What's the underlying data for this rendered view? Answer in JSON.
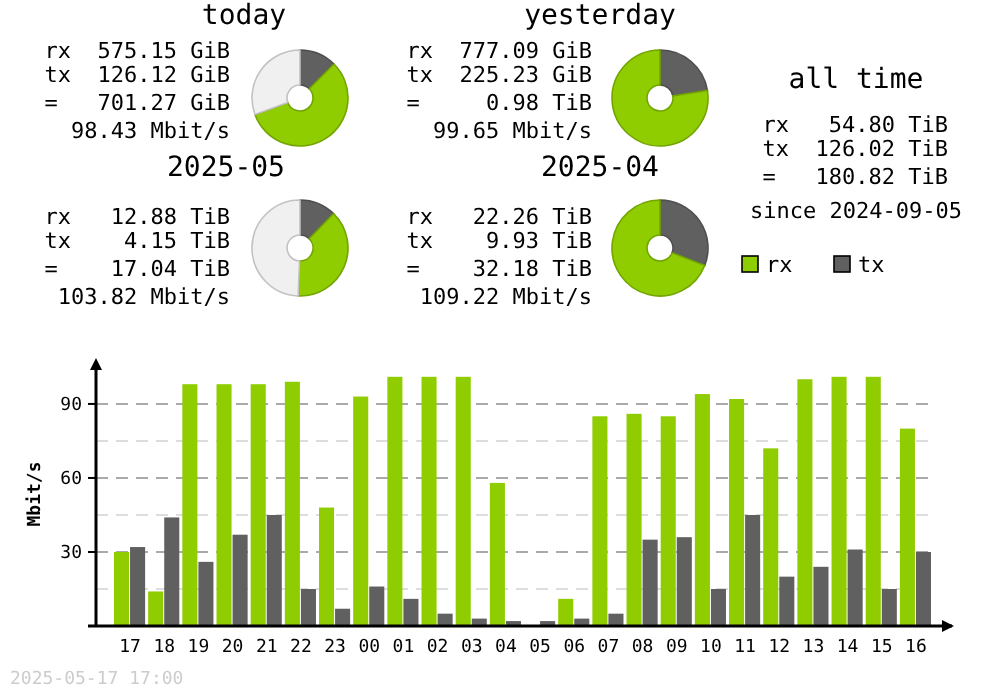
{
  "chart_data": [
    {
      "type": "donut",
      "title": "today",
      "categories": [
        null,
        null,
        null
      ],
      "values": [
        12.5,
        56.9,
        30.6
      ],
      "colors": [
        "#606060",
        "#8fcc00",
        "#f0f0f0"
      ],
      "annotations": [
        "rx  575.15 GiB",
        "tx  126.12 GiB",
        "=   701.27 GiB",
        "98.43 Mbit/s"
      ]
    },
    {
      "type": "donut",
      "title": "yesterday",
      "categories": [
        null,
        null
      ],
      "values": [
        22.5,
        77.5
      ],
      "colors": [
        "#606060",
        "#8fcc00"
      ],
      "annotations": [
        "rx  777.09 GiB",
        "tx  225.23 GiB",
        "=     0.98 TiB",
        "99.65 Mbit/s"
      ]
    },
    {
      "type": "donut",
      "title": "2025-05",
      "categories": [
        null,
        null,
        null
      ],
      "values": [
        12.3,
        38.3,
        49.4
      ],
      "colors": [
        "#606060",
        "#8fcc00",
        "#f0f0f0"
      ],
      "annotations": [
        "rx   12.88 TiB",
        "tx    4.15 TiB",
        "=    17.04 TiB",
        "103.82 Mbit/s"
      ]
    },
    {
      "type": "donut",
      "title": "2025-04",
      "categories": [
        null,
        null
      ],
      "values": [
        30.9,
        69.1
      ],
      "colors": [
        "#606060",
        "#8fcc00"
      ],
      "annotations": [
        "rx   22.26 TiB",
        "tx    9.93 TiB",
        "=    32.18 TiB",
        "109.22 Mbit/s"
      ]
    },
    {
      "type": "other",
      "title": "all time",
      "annotations": [
        "rx   54.80 TiB",
        "tx  126.02 TiB",
        "=   180.82 TiB",
        "since 2024-09-05"
      ]
    },
    {
      "type": "bar",
      "ylabel": "Mbit/s",
      "categories": [
        "17",
        "18",
        "19",
        "20",
        "21",
        "22",
        "23",
        "00",
        "01",
        "02",
        "03",
        "04",
        "05",
        "06",
        "07",
        "08",
        "09",
        "10",
        "11",
        "12",
        "13",
        "14",
        "15",
        "16"
      ],
      "series": [
        {
          "name": "rx",
          "color": "#8fcc00",
          "values": [
            30,
            14,
            98,
            98,
            98,
            99,
            48,
            93,
            101,
            101,
            101,
            58,
            0,
            11,
            85,
            86,
            85,
            94,
            92,
            72,
            100,
            101,
            101,
            80
          ]
        },
        {
          "name": "tx",
          "color": "#606060",
          "values": [
            32,
            44,
            26,
            37,
            45,
            15,
            7,
            16,
            11,
            5,
            3,
            2,
            2,
            3,
            5,
            35,
            36,
            15,
            45,
            20,
            24,
            31,
            15,
            30
          ]
        }
      ],
      "ylim": [
        0,
        107
      ],
      "yticks": [
        {
          "value": 15,
          "label": null
        },
        30,
        {
          "value": 45,
          "label": null
        },
        60,
        {
          "value": 75,
          "label": null
        },
        90
      ],
      "grid": "y",
      "legend": "top right",
      "annotations": [
        "2025-05-17 17:00"
      ]
    }
  ]
}
